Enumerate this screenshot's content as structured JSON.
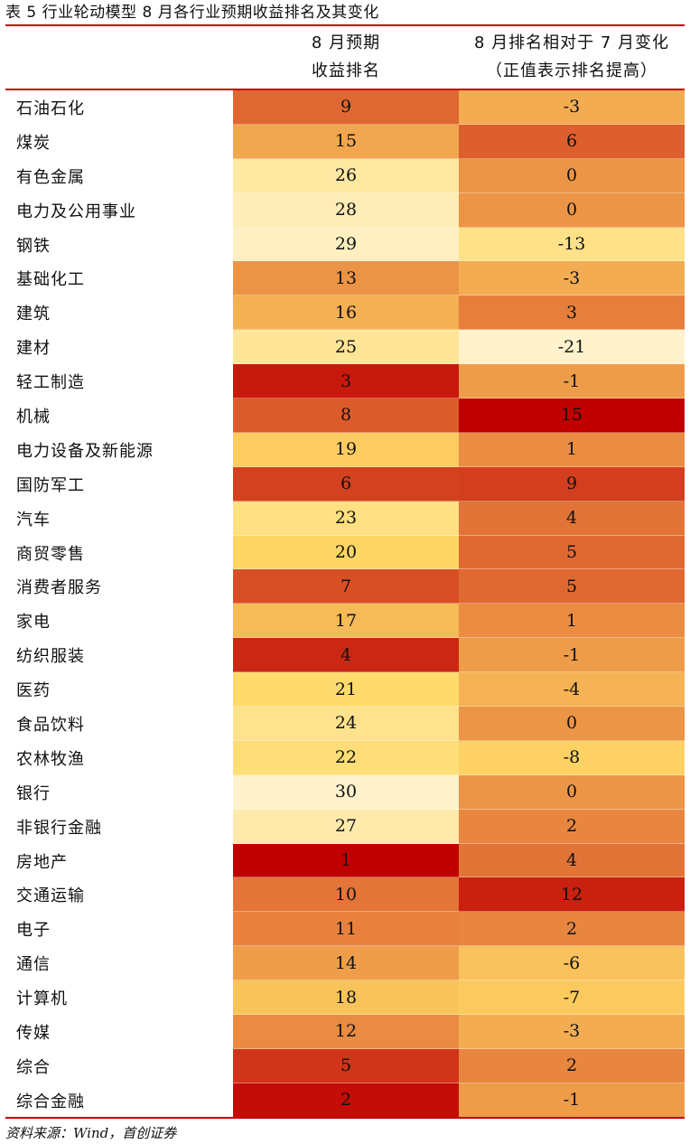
{
  "title": "表 5 行业轮动模型 8 月各行业预期收益排名及其变化",
  "headers": {
    "col1_line1": "8 月预期",
    "col1_line2": "收益排名",
    "col2_line1": "8 月排名相对于 7 月变化",
    "col2_line2": "（正值表示排名提高）"
  },
  "rows": [
    {
      "name": "石油石化",
      "rank": "9",
      "change": "-3"
    },
    {
      "name": "煤炭",
      "rank": "15",
      "change": "6"
    },
    {
      "name": "有色金属",
      "rank": "26",
      "change": "0"
    },
    {
      "name": "电力及公用事业",
      "rank": "28",
      "change": "0"
    },
    {
      "name": "钢铁",
      "rank": "29",
      "change": "-13"
    },
    {
      "name": "基础化工",
      "rank": "13",
      "change": "-3"
    },
    {
      "name": "建筑",
      "rank": "16",
      "change": "3"
    },
    {
      "name": "建材",
      "rank": "25",
      "change": "-21"
    },
    {
      "name": "轻工制造",
      "rank": "3",
      "change": "-1"
    },
    {
      "name": "机械",
      "rank": "8",
      "change": "15"
    },
    {
      "name": "电力设备及新能源",
      "rank": "19",
      "change": "1"
    },
    {
      "name": "国防军工",
      "rank": "6",
      "change": "9"
    },
    {
      "name": "汽车",
      "rank": "23",
      "change": "4"
    },
    {
      "name": "商贸零售",
      "rank": "20",
      "change": "5"
    },
    {
      "name": "消费者服务",
      "rank": "7",
      "change": "5"
    },
    {
      "name": "家电",
      "rank": "17",
      "change": "1"
    },
    {
      "name": "纺织服装",
      "rank": "4",
      "change": "-1"
    },
    {
      "name": "医药",
      "rank": "21",
      "change": "-4"
    },
    {
      "name": "食品饮料",
      "rank": "24",
      "change": "0"
    },
    {
      "name": "农林牧渔",
      "rank": "22",
      "change": "-8"
    },
    {
      "name": "银行",
      "rank": "30",
      "change": "0"
    },
    {
      "name": "非银行金融",
      "rank": "27",
      "change": "2"
    },
    {
      "name": "房地产",
      "rank": "1",
      "change": "4"
    },
    {
      "name": "交通运输",
      "rank": "10",
      "change": "12"
    },
    {
      "name": "电子",
      "rank": "11",
      "change": "2"
    },
    {
      "name": "通信",
      "rank": "14",
      "change": "-6"
    },
    {
      "name": "计算机",
      "rank": "18",
      "change": "-7"
    },
    {
      "name": "传媒",
      "rank": "12",
      "change": "-3"
    },
    {
      "name": "综合",
      "rank": "5",
      "change": "2"
    },
    {
      "name": "综合金融",
      "rank": "2",
      "change": "-1"
    }
  ],
  "source": "资料来源：Wind，首创证券",
  "colors": {
    "rule": "#c00000",
    "heat_low": "#fff2cc",
    "heat_mid": "#ffd966",
    "heat_orange": "#e67e3c",
    "heat_high": "#c00000"
  }
}
